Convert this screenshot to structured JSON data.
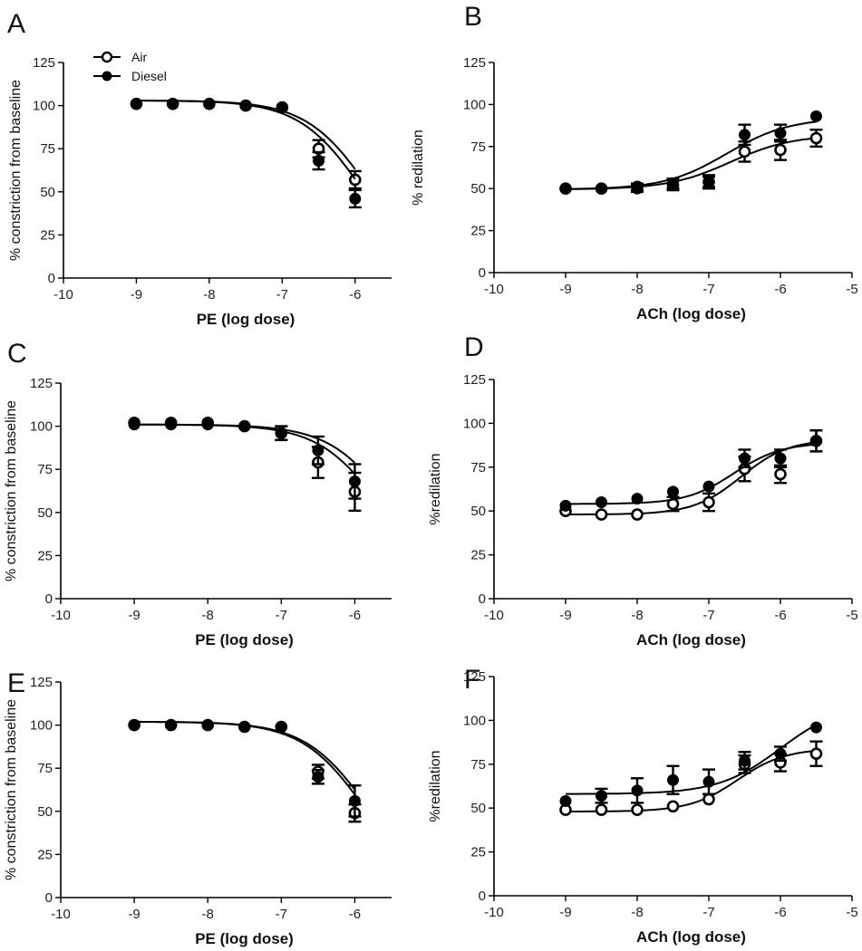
{
  "legend": {
    "entries": [
      {
        "name": "Air",
        "marker": "open-circle"
      },
      {
        "name": "Diesel",
        "marker": "filled-circle"
      }
    ],
    "placement": "top-left of panel A"
  },
  "chart_data": [
    {
      "panel": "A",
      "type": "scatter",
      "xlabel": "PE  (log dose)",
      "ylabel": "% constriction from baseline",
      "xlim": [
        -10,
        -5.5
      ],
      "ylim": [
        0,
        125
      ],
      "xticks": [
        -10,
        -9,
        -8,
        -7,
        -6
      ],
      "yticks": [
        0,
        25,
        50,
        75,
        100,
        125
      ],
      "grid": false,
      "series": [
        {
          "name": "Air",
          "marker": "open",
          "x": [
            -9,
            -8.5,
            -8,
            -7.5,
            -7,
            -6.5,
            -6
          ],
          "y": [
            101,
            101,
            101,
            100,
            99,
            75,
            57
          ],
          "err": [
            0,
            0,
            0,
            0,
            0,
            5,
            5
          ],
          "fit": {
            "top": 103,
            "bottom": 0,
            "logec50": -5.8,
            "hill": -1
          }
        },
        {
          "name": "Diesel",
          "marker": "filled",
          "x": [
            -9,
            -8.5,
            -8,
            -7.5,
            -7,
            -6.5,
            -6
          ],
          "y": [
            101,
            101,
            101,
            100,
            99,
            68,
            46
          ],
          "err": [
            0,
            0,
            0,
            0,
            0,
            5,
            5
          ],
          "fit": {
            "top": 103,
            "bottom": 0,
            "logec50": -5.9,
            "hill": -1
          }
        }
      ]
    },
    {
      "panel": "B",
      "type": "scatter",
      "xlabel": "ACh (log dose)",
      "ylabel": "% redilation",
      "xlim": [
        -10,
        -5
      ],
      "ylim": [
        0,
        125
      ],
      "xticks": [
        -10,
        -9,
        -8,
        -7,
        -6,
        -5
      ],
      "yticks": [
        0,
        25,
        50,
        75,
        100,
        125
      ],
      "grid": false,
      "series": [
        {
          "name": "Air",
          "marker": "open",
          "x": [
            -9,
            -8.5,
            -8,
            -7.5,
            -7,
            -6.5,
            -6,
            -5.5
          ],
          "y": [
            50,
            50,
            51,
            52,
            54,
            72,
            73,
            80
          ],
          "err": [
            0,
            0,
            2,
            3,
            4,
            6,
            6,
            5
          ],
          "fit": {
            "top": 82,
            "bottom": 49.5,
            "logec50": -6.7,
            "hill": 1
          }
        },
        {
          "name": "Diesel",
          "marker": "filled",
          "x": [
            -9,
            -8.5,
            -8,
            -7.5,
            -7,
            -6.5,
            -6,
            -5.5
          ],
          "y": [
            50,
            50,
            50,
            53,
            54,
            82,
            83,
            93
          ],
          "err": [
            0,
            0,
            2,
            3,
            3,
            6,
            5,
            0
          ],
          "fit": {
            "top": 92,
            "bottom": 49.5,
            "logec50": -6.75,
            "hill": 1
          }
        }
      ]
    },
    {
      "panel": "C",
      "type": "scatter",
      "xlabel": "PE  (log dose)",
      "ylabel": "% constriction from baseline",
      "xlim": [
        -10,
        -5.5
      ],
      "ylim": [
        0,
        125
      ],
      "xticks": [
        -10,
        -9,
        -8,
        -7,
        -6
      ],
      "yticks": [
        0,
        25,
        50,
        75,
        100,
        125
      ],
      "grid": false,
      "series": [
        {
          "name": "Air",
          "marker": "open",
          "x": [
            -9,
            -8.5,
            -8,
            -7.5,
            -7,
            -6.5,
            -6
          ],
          "y": [
            102,
            102,
            102,
            100,
            96,
            79,
            62
          ],
          "err": [
            0,
            0,
            0,
            0,
            4,
            9,
            11
          ],
          "fit": {
            "top": 101,
            "bottom": 0,
            "logec50": -5.6,
            "hill": -1
          }
        },
        {
          "name": "Diesel",
          "marker": "filled",
          "x": [
            -9,
            -8.5,
            -8,
            -7.5,
            -7,
            -6.5,
            -6
          ],
          "y": [
            101,
            101,
            101,
            100,
            96,
            86,
            68
          ],
          "err": [
            0,
            0,
            0,
            0,
            4,
            8,
            10
          ],
          "fit": {
            "top": 101,
            "bottom": 0,
            "logec50": -5.45,
            "hill": -1
          }
        }
      ]
    },
    {
      "panel": "D",
      "type": "scatter",
      "xlabel": "ACh (log dose)",
      "ylabel": "%redilation",
      "xlim": [
        -10,
        -5
      ],
      "ylim": [
        0,
        125
      ],
      "xticks": [
        -10,
        -9,
        -8,
        -7,
        -6,
        -5
      ],
      "yticks": [
        0,
        25,
        50,
        75,
        100,
        125
      ],
      "grid": false,
      "series": [
        {
          "name": "Air",
          "marker": "open",
          "x": [
            -9,
            -8.5,
            -8,
            -7.5,
            -7,
            -6.5,
            -6,
            -5.5
          ],
          "y": [
            50,
            48,
            48,
            54,
            55,
            74,
            71,
            90
          ],
          "err": [
            0,
            0,
            0,
            4,
            5,
            7,
            5,
            6
          ],
          "fit": {
            "top": 91,
            "bottom": 48,
            "logec50": -6.55,
            "hill": 1.3
          }
        },
        {
          "name": "Diesel",
          "marker": "filled",
          "x": [
            -9,
            -8.5,
            -8,
            -7.5,
            -7,
            -6.5,
            -6,
            -5.5
          ],
          "y": [
            53,
            55,
            57,
            61,
            64,
            80,
            80,
            90
          ],
          "err": [
            0,
            0,
            0,
            0,
            0,
            5,
            5,
            6
          ],
          "fit": {
            "top": 89,
            "bottom": 54,
            "logec50": -6.65,
            "hill": 1.3
          }
        }
      ]
    },
    {
      "panel": "E",
      "type": "scatter",
      "xlabel": "PE  (log dose)",
      "ylabel": "% constriction from baseline",
      "xlim": [
        -10,
        -5.5
      ],
      "ylim": [
        0,
        125
      ],
      "xticks": [
        -10,
        -9,
        -8,
        -7,
        -6
      ],
      "yticks": [
        0,
        25,
        50,
        75,
        100,
        125
      ],
      "grid": false,
      "series": [
        {
          "name": "Air",
          "marker": "open",
          "x": [
            -9,
            -8.5,
            -8,
            -7.5,
            -7,
            -6.5,
            -6
          ],
          "y": [
            100,
            100,
            100,
            99,
            99,
            73,
            49
          ],
          "err": [
            0,
            0,
            0,
            0,
            0,
            4,
            5
          ],
          "fit": {
            "top": 102,
            "bottom": 0,
            "logec50": -5.85,
            "hill": -1
          }
        },
        {
          "name": "Diesel",
          "marker": "filled",
          "x": [
            -9,
            -8.5,
            -8,
            -7.5,
            -7,
            -6.5,
            -6
          ],
          "y": [
            100,
            100,
            100,
            99,
            99,
            70,
            56
          ],
          "err": [
            0,
            0,
            0,
            0,
            0,
            4,
            9
          ],
          "fit": {
            "top": 102,
            "bottom": 0,
            "logec50": -5.8,
            "hill": -1
          }
        }
      ]
    },
    {
      "panel": "F",
      "type": "scatter",
      "xlabel": "ACh (log dose)",
      "ylabel": "%redilation",
      "xlim": [
        -10,
        -5
      ],
      "ylim": [
        0,
        125
      ],
      "xticks": [
        -10,
        -9,
        -8,
        -7,
        -6,
        -5
      ],
      "yticks": [
        0,
        25,
        50,
        75,
        100,
        125
      ],
      "grid": false,
      "series": [
        {
          "name": "Air",
          "marker": "open",
          "x": [
            -9,
            -8.5,
            -8,
            -7.5,
            -7,
            -6.5,
            -6,
            -5.5
          ],
          "y": [
            49,
            49,
            49,
            51,
            55,
            75,
            76,
            81
          ],
          "err": [
            0,
            0,
            0,
            0,
            0,
            5,
            5,
            7
          ],
          "fit": {
            "top": 84,
            "bottom": 48,
            "logec50": -6.6,
            "hill": 1.3
          }
        },
        {
          "name": "Diesel",
          "marker": "filled",
          "x": [
            -9,
            -8.5,
            -8,
            -7.5,
            -7,
            -6.5,
            -6,
            -5.5
          ],
          "y": [
            54,
            57,
            60,
            66,
            65,
            77,
            81,
            96
          ],
          "err": [
            0,
            4,
            7,
            8,
            7,
            5,
            4,
            0
          ],
          "fit": {
            "top": 110,
            "bottom": 58,
            "logec50": -6.0,
            "hill": 1
          }
        }
      ]
    }
  ]
}
